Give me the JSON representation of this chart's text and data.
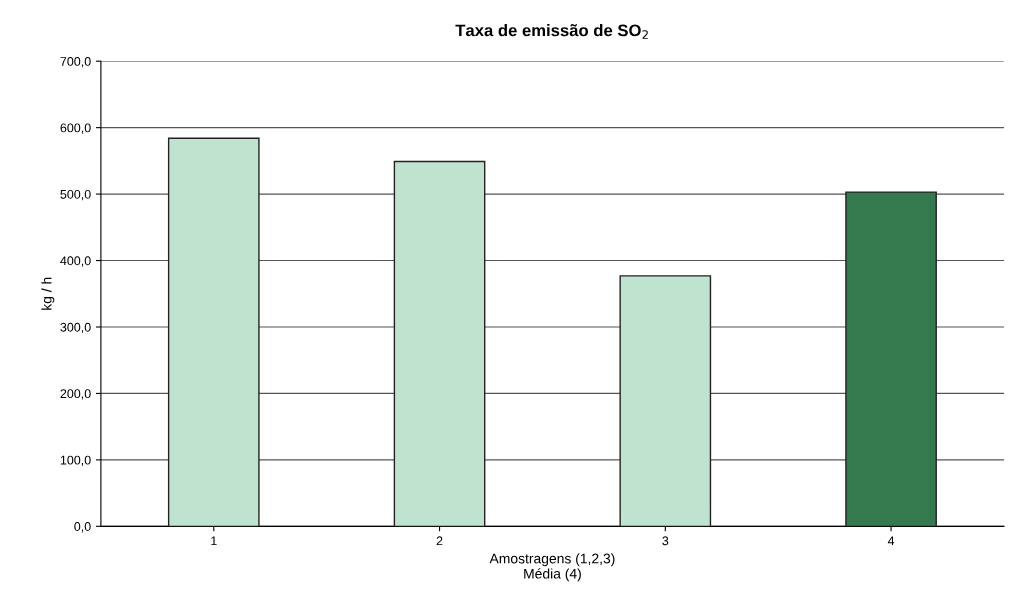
{
  "chart_data": {
    "type": "bar",
    "title": "Taxa de emissão de SO$_{2}$",
    "xlabel": "Amostragens (1,2,3)\nMédia (4)",
    "ylabel": "kg / h",
    "categories": [
      "1",
      "2",
      "3",
      "4"
    ],
    "values": [
      584,
      549,
      377,
      503
    ],
    "colors": [
      "#bfe3cf",
      "#bfe3cf",
      "#bfe3cf",
      "#357a4f"
    ],
    "ylim": [
      0,
      700
    ],
    "yticks": [
      {
        "value": 0,
        "label": "0,0"
      },
      {
        "value": 100,
        "label": "100,0"
      },
      {
        "value": 200,
        "label": "200,0"
      },
      {
        "value": 300,
        "label": "300,0"
      },
      {
        "value": 400,
        "label": "400,0"
      },
      {
        "value": 500,
        "label": "500,0"
      },
      {
        "value": 600,
        "label": "600,0"
      },
      {
        "value": 700,
        "label": "700,0"
      }
    ],
    "grid": "y"
  }
}
